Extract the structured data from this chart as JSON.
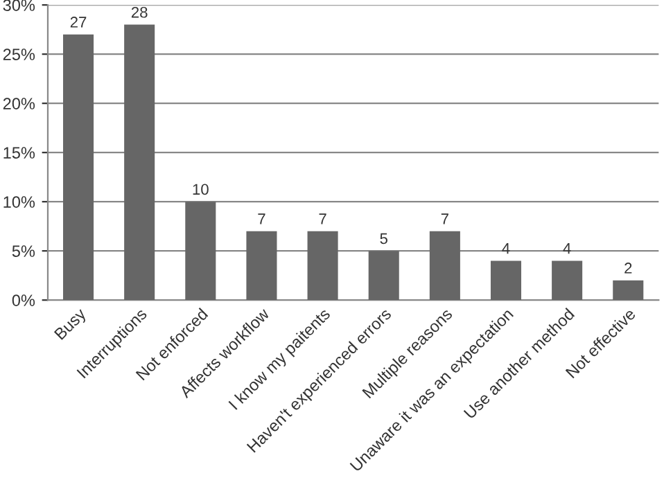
{
  "chart_data": {
    "type": "bar",
    "categories": [
      "Busy",
      "Interruptions",
      "Not enforced",
      "Affects workflow",
      "I know my paitents",
      "Haven't experienced errors",
      "Multiple reasons",
      "Unaware it was an expectation",
      "Use another method",
      "Not effective"
    ],
    "values": [
      27,
      28,
      10,
      7,
      7,
      5,
      7,
      4,
      4,
      2
    ],
    "color": "#666666",
    "ylim": [
      0,
      30
    ],
    "yticks": [
      {
        "value": 0,
        "label": "0%"
      },
      {
        "value": 5,
        "label": "5%"
      },
      {
        "value": 10,
        "label": "10%"
      },
      {
        "value": 15,
        "label": "15%"
      },
      {
        "value": 20,
        "label": "20%"
      },
      {
        "value": 25,
        "label": "25%"
      },
      {
        "value": 30,
        "label": "30%"
      }
    ],
    "grid": "y",
    "data_labels": true
  }
}
